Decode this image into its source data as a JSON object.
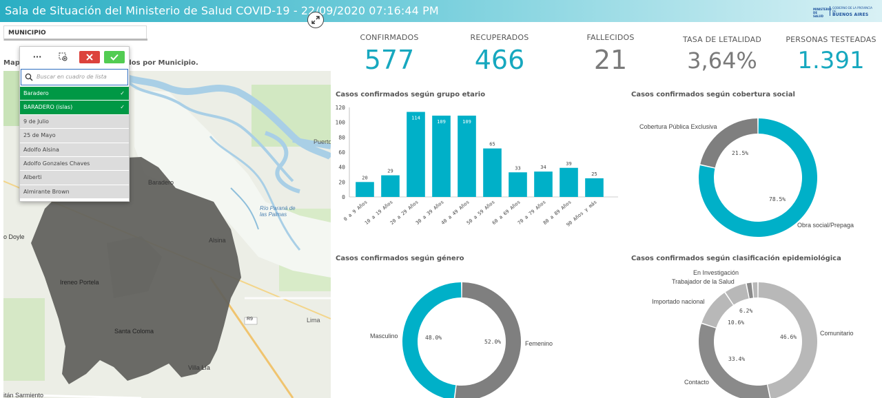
{
  "header": {
    "title": "Sala de Situación del Ministerio de Salud COVID-19 - 22/09/2020 07:16:44 PM",
    "logo_ministerio": "MINISTERIO DE SALUD",
    "logo_province_small": "GOBIERNO DE LA PROVINCIA DE",
    "logo_province": "BUENOS AIRES"
  },
  "filter": {
    "label": "MUNICIPIO"
  },
  "listbox": {
    "more_label": "···",
    "search_placeholder": "Buscar en cuadro de lista",
    "items": [
      {
        "label": "Baradero",
        "selected": true
      },
      {
        "label": "BARADERO (islas)",
        "selected": true
      },
      {
        "label": "9 de Julio",
        "selected": false
      },
      {
        "label": "25 de Mayo",
        "selected": false
      },
      {
        "label": "Adolfo Alsina",
        "selected": false
      },
      {
        "label": "Adolfo Gonzales Chaves",
        "selected": false
      },
      {
        "label": "Alberti",
        "selected": false
      },
      {
        "label": "Almirante Brown",
        "selected": false
      }
    ],
    "check_mark": "✓"
  },
  "map": {
    "title": "Mapa ...ados por Municipio.",
    "title_left": "Mapa",
    "title_right": "dos por Municipio.",
    "places": [
      "Baradero",
      "Alsina",
      "Ireneo Portela",
      "Santa Coloma",
      "Villa Lía",
      "Lima",
      "Puerto",
      "Río Paraná de las Palmas",
      "o Doyle",
      "itán Sarmiento",
      "R9"
    ]
  },
  "kpis": [
    {
      "label": "CONFIRMADOS",
      "value": "577",
      "color": "#17a8bf"
    },
    {
      "label": "RECUPERADOS",
      "value": "466",
      "color": "#17a8bf"
    },
    {
      "label": "FALLECIDOS",
      "value": "21",
      "color": "#7a7a7a"
    },
    {
      "label": "TASA DE LETALIDAD",
      "value": "3,64%",
      "color": "#7a7a7a"
    },
    {
      "label": "PERSONAS TESTEADAS",
      "value": "1.391",
      "color": "#17a8bf"
    }
  ],
  "colors": {
    "teal": "#00b0c8",
    "darkgray": "#7f7f7f",
    "gray": "#8a8a8a",
    "lightgray": "#b8b8b8"
  },
  "chart_data": [
    {
      "type": "bar",
      "title": "Casos confirmados según grupo etario",
      "categories": [
        "0 a 9 Años",
        "10 a 19 Años",
        "20 a 29 Años",
        "30 a 39 Años",
        "40 a 49 Años",
        "50 a 59 Años",
        "60 a 69 Años",
        "70 a 79 Años",
        "80 a 89 Años",
        "90 Años y más"
      ],
      "values": [
        20,
        29,
        114,
        109,
        109,
        65,
        33,
        34,
        39,
        25
      ],
      "yticks": [
        0,
        20,
        40,
        60,
        80,
        100,
        120
      ],
      "ylim": [
        0,
        120
      ],
      "color": "#00b0c8"
    },
    {
      "type": "pie",
      "title": "Casos confirmados según cobertura social",
      "slices": [
        {
          "label": "Obra social/Prepaga",
          "pct": "78.5%",
          "value": 78.5,
          "color": "#00b0c8"
        },
        {
          "label": "Cobertura Pública Exclusiva",
          "pct": "21.5%",
          "value": 21.5,
          "color": "#7f7f7f"
        }
      ]
    },
    {
      "type": "pie",
      "title": "Casos confirmados según género",
      "slices": [
        {
          "label": "Femenino",
          "pct": "52.0%",
          "value": 52.0,
          "color": "#7f7f7f"
        },
        {
          "label": "Masculino",
          "pct": "48.0%",
          "value": 48.0,
          "color": "#00b0c8"
        }
      ]
    },
    {
      "type": "pie",
      "title": "Casos confirmados según clasificación epidemiológica",
      "slices": [
        {
          "label": "Comunitario",
          "pct": "46.6%",
          "value": 46.6,
          "color": "#b8b8b8"
        },
        {
          "label": "Contacto",
          "pct": "33.4%",
          "value": 33.4,
          "color": "#8a8a8a"
        },
        {
          "label": "Importado nacional",
          "pct": "10.6%",
          "value": 10.6,
          "color": "#b8b8b8"
        },
        {
          "label": "Trabajador de la Salud",
          "pct": "6.2%",
          "value": 6.2,
          "color": "#b8b8b8"
        },
        {
          "label": "En Investigación",
          "pct": "",
          "value": 1.6,
          "color": "#8a8a8a"
        },
        {
          "label": "",
          "pct": "",
          "value": 1.6,
          "color": "#b8b8b8"
        }
      ]
    }
  ]
}
